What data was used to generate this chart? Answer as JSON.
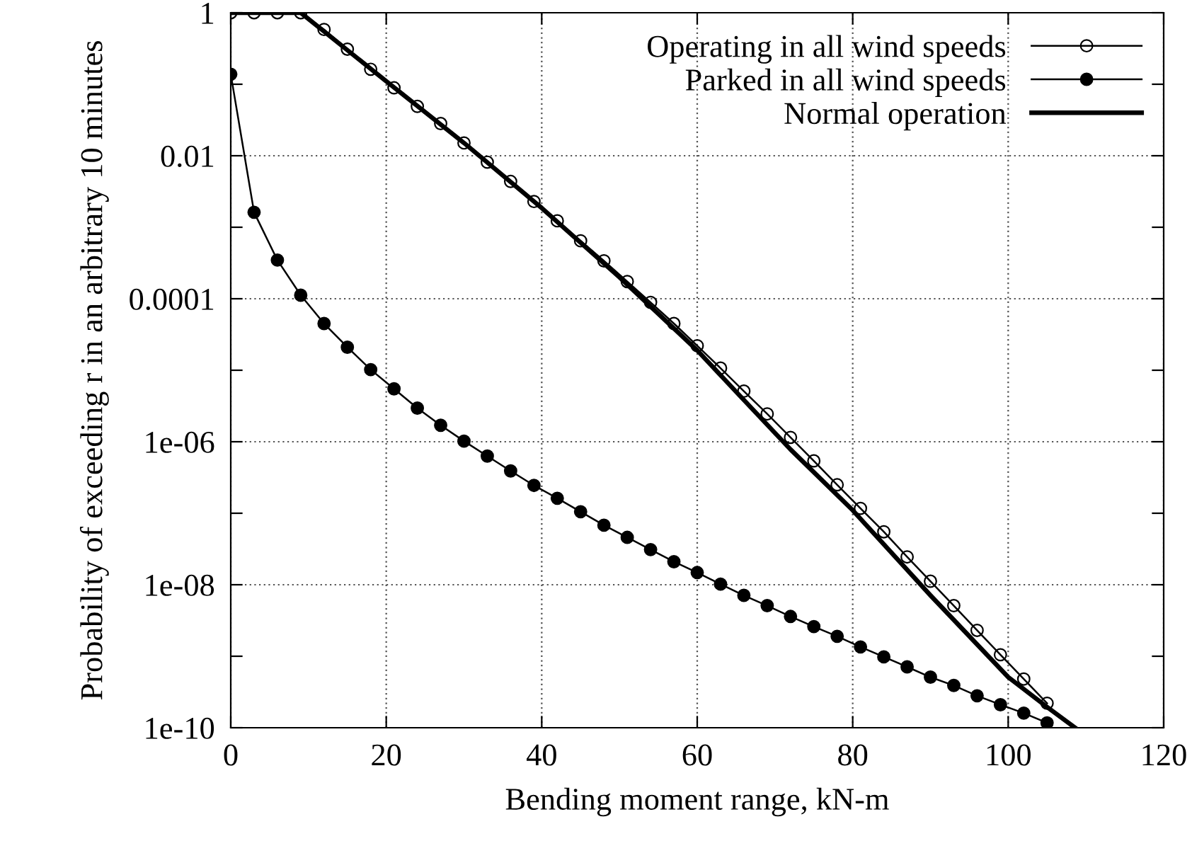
{
  "chart_data": {
    "type": "line",
    "xlabel": "Bending moment range, kN-m",
    "ylabel": "Probability of exceeding r in an arbitrary 10 minutes",
    "log": "y",
    "grid": true,
    "legend": "top right",
    "xlim": [
      0,
      120
    ],
    "xticks": [
      0,
      20,
      40,
      60,
      80,
      100,
      120
    ],
    "ylim": [
      1e-10,
      1
    ],
    "yticks": [
      {
        "value": 1,
        "label": "1"
      },
      {
        "value": 0.1,
        "label": null
      },
      {
        "value": 0.01,
        "label": "0.01"
      },
      {
        "value": 0.001,
        "label": null
      },
      {
        "value": 0.0001,
        "label": "0.0001"
      },
      {
        "value": 1e-05,
        "label": null
      },
      {
        "value": 1e-06,
        "label": "1e-06"
      },
      {
        "value": 1e-07,
        "label": null
      },
      {
        "value": 1e-08,
        "label": "1e-08"
      },
      {
        "value": 1e-09,
        "label": null
      },
      {
        "value": 1e-10,
        "label": "1e-10"
      }
    ],
    "series": [
      {
        "name": "Operating in all wind speeds",
        "color": "#000000",
        "marker": "open circle",
        "line_style": "solid",
        "x": [
          0,
          3,
          6,
          9,
          12,
          15,
          18,
          21,
          24,
          27,
          30,
          33,
          36,
          39,
          42,
          45,
          48,
          51,
          54,
          57,
          60,
          63,
          66,
          69,
          72,
          75,
          78,
          81,
          84,
          87,
          90,
          93,
          96,
          99,
          102,
          105
        ],
        "values": [
          1,
          1,
          1,
          1,
          0.583,
          0.309,
          0.162,
          0.0891,
          0.049,
          0.0282,
          0.0151,
          0.00813,
          0.00437,
          0.00229,
          0.00123,
          0.000646,
          0.000339,
          0.000174,
          8.9e-05,
          4.5e-05,
          2.2e-05,
          1.07e-05,
          5.1e-06,
          2.45e-06,
          1.15e-06,
          5.4e-07,
          2.5e-07,
          1.17e-07,
          5.5e-08,
          2.45e-08,
          1.12e-08,
          5.1e-09,
          2.3e-09,
          1.05e-09,
          4.8e-10,
          2.2e-10
        ]
      },
      {
        "name": "Parked in all wind speeds",
        "color": "#000000",
        "marker": "circle",
        "line_style": "solid",
        "x": [
          0,
          3,
          6,
          9,
          12,
          15,
          18,
          21,
          24,
          27,
          30,
          33,
          36,
          39,
          42,
          45,
          48,
          51,
          54,
          57,
          60,
          63,
          66,
          69,
          72,
          75,
          78,
          81,
          84,
          87,
          90,
          93,
          96,
          99,
          102,
          105
        ],
        "values": [
          0.138,
          0.00162,
          0.000347,
          0.000112,
          4.5e-05,
          2.1e-05,
          1.02e-05,
          5.5e-06,
          2.95e-06,
          1.7e-06,
          1.02e-06,
          6.3e-07,
          3.9e-07,
          2.45e-07,
          1.62e-07,
          1.05e-07,
          6.8e-08,
          4.6e-08,
          3.1e-08,
          2.1e-08,
          1.48e-08,
          1.02e-08,
          7.1e-09,
          5.1e-09,
          3.6e-09,
          2.6e-09,
          1.9e-09,
          1.35e-09,
          9.8e-10,
          7.1e-10,
          5.1e-10,
          3.9e-10,
          2.8e-10,
          2.1e-10,
          1.6e-10,
          1.17e-10
        ]
      },
      {
        "name": "Normal operation",
        "color": "#000000",
        "marker": "none",
        "line_style": "solid",
        "x": [
          0,
          9,
          20,
          30,
          40,
          50,
          60,
          65,
          72,
          80,
          90,
          100,
          105,
          108.6
        ],
        "values": [
          1,
          1,
          0.11,
          0.0151,
          0.00186,
          0.0002,
          1.9e-05,
          5e-06,
          7.8e-07,
          1.1e-07,
          7.1e-09,
          5.1e-10,
          1.95e-10,
          1e-10
        ]
      }
    ]
  }
}
